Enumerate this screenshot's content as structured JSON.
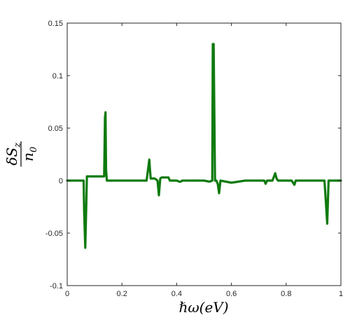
{
  "chart_data": {
    "type": "line",
    "xlabel": "ℏω(eV)",
    "ylabel": {
      "numerator": "δS",
      "numerator_sub": "z",
      "denominator": "n",
      "denominator_sub": "0"
    },
    "xlim": [
      0,
      1
    ],
    "ylim": [
      -0.1,
      0.15
    ],
    "x_ticks": [
      0,
      0.2,
      0.4,
      0.6,
      0.8,
      1
    ],
    "x_tick_labels": [
      "0",
      "0.2",
      "0.4",
      "0.6",
      "0.8",
      "1"
    ],
    "y_ticks": [
      -0.1,
      -0.05,
      0,
      0.05,
      0.1,
      0.15
    ],
    "y_tick_labels": [
      "-0.1",
      "-0.05",
      "0",
      "0.05",
      "0.1",
      "0.15"
    ],
    "grid": false,
    "line_color": "#0f7a0f",
    "series": [
      {
        "x": [
          0,
          0.06,
          0.062,
          0.066,
          0.07,
          0.072,
          0.135,
          0.138,
          0.14,
          0.142,
          0.145,
          0.29,
          0.3,
          0.302,
          0.305,
          0.32,
          0.33,
          0.335,
          0.34,
          0.345,
          0.37,
          0.375,
          0.4,
          0.41,
          0.415,
          0.42,
          0.48,
          0.5,
          0.52,
          0.53,
          0.532,
          0.535,
          0.54,
          0.545,
          0.55,
          0.555,
          0.56,
          0.6,
          0.65,
          0.7,
          0.72,
          0.725,
          0.73,
          0.75,
          0.76,
          0.765,
          0.77,
          0.8,
          0.82,
          0.83,
          0.835,
          0.84,
          0.9,
          0.94,
          0.945,
          0.95,
          0.955,
          1
        ],
        "y": [
          0,
          0,
          -0.03,
          -0.064,
          -0.02,
          0.004,
          0.004,
          0.06,
          0.065,
          0.01,
          0,
          0,
          0.02,
          0.012,
          0.002,
          0.002,
          0,
          -0.014,
          0.002,
          0.003,
          0.003,
          0,
          0,
          -0.001,
          -0.001,
          0,
          0,
          0,
          -0.001,
          0,
          0.13,
          0.13,
          0,
          0,
          -0.003,
          -0.012,
          0,
          -0.002,
          0,
          0,
          0,
          -0.003,
          0,
          0,
          0.007,
          0.002,
          0,
          0,
          0,
          -0.004,
          0,
          0,
          0,
          0,
          -0.02,
          -0.041,
          0,
          0
        ]
      }
    ]
  }
}
